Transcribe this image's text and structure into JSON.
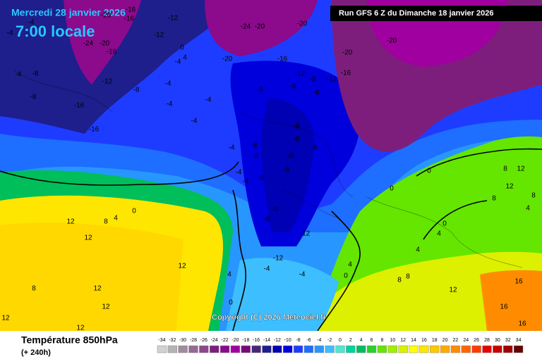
{
  "header": {
    "date": "Mercredi 28 janvier 2026",
    "time": "7:00 locale",
    "run": "Run GFS 6 Z du Dimanche 18 janvier 2026"
  },
  "map": {
    "copyright": "Copyright (C) 2026 Meteociel.fr",
    "labels": [
      "-4",
      "-4",
      "-20",
      "-16",
      "-16",
      "-12",
      "-12",
      "-24",
      "-20",
      "-16",
      "0",
      "4",
      "-4",
      "-24",
      "-20",
      "-20",
      "-20",
      "-20",
      "-20",
      "-16",
      "-12",
      "-8",
      "-12",
      "-16",
      "-12",
      "-8",
      "-4",
      "-4",
      "-4",
      "-8",
      "-8",
      "-8",
      "-4",
      "-16",
      "-16",
      "-8",
      "-4",
      "-8",
      "-4",
      "-8",
      "-8",
      "-8",
      "-8",
      "-4",
      "-4",
      "-8",
      "-8",
      "-8",
      "-8",
      "-8",
      "-8",
      "-12",
      "-12",
      "-4",
      "-4",
      "0",
      "4",
      "0",
      "0",
      "0",
      "4",
      "8",
      "12",
      "12",
      "12",
      "8",
      "12",
      "12",
      "12",
      "12",
      "4",
      "0",
      "0",
      "4",
      "4",
      "8",
      "8",
      "12",
      "16",
      "16",
      "16",
      "8",
      "12",
      "12",
      "8",
      "4",
      "8"
    ]
  },
  "footer": {
    "title": "Température 850hPa",
    "lead": "(+ 240h)"
  },
  "legend": {
    "values": [
      -34,
      -32,
      -30,
      -28,
      -26,
      -24,
      -22,
      -20,
      -18,
      -16,
      -14,
      -12,
      -10,
      -8,
      -6,
      -4,
      -2,
      0,
      2,
      4,
      6,
      8,
      10,
      12,
      14,
      16,
      18,
      20,
      22,
      24,
      26,
      28,
      30,
      32,
      34
    ],
    "colors": [
      "#d2d2d2",
      "#b4b4b4",
      "#a08ca0",
      "#966896",
      "#8c468c",
      "#7d1e7d",
      "#8c0a8c",
      "#a000a0",
      "#780a78",
      "#46287a",
      "#1e1e8c",
      "#0000b4",
      "#0000dc",
      "#1e3cff",
      "#1e6eff",
      "#2896ff",
      "#3cbeff",
      "#50e6d2",
      "#00d29b",
      "#00be5a",
      "#28d228",
      "#64e600",
      "#a0f000",
      "#dcf000",
      "#ffff00",
      "#ffe600",
      "#ffc800",
      "#ffaa00",
      "#ff8c00",
      "#ff6400",
      "#ff3c00",
      "#e60000",
      "#c80000",
      "#a00000",
      "#640000"
    ]
  }
}
